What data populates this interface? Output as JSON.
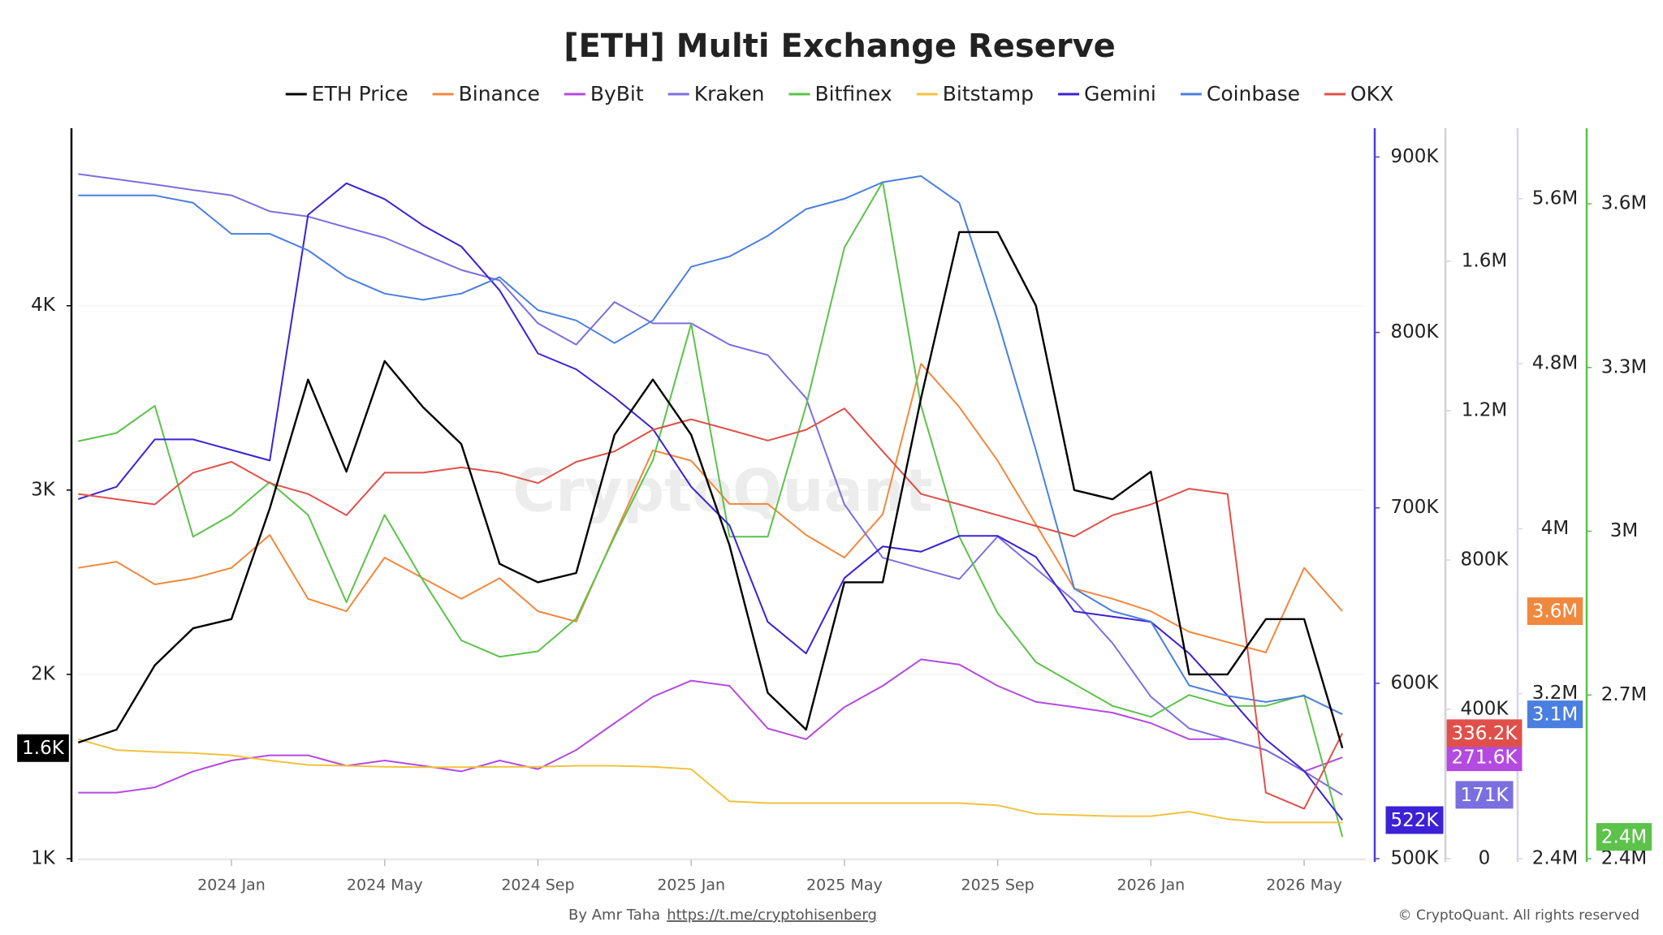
{
  "chart_data": {
    "type": "line",
    "title": "[ETH] Multi Exchange Reserve",
    "watermark": "CryptoQuant",
    "credit": "By Amr Taha",
    "credit_link": "https://t.me/cryptohisenberg",
    "copyright": "© CryptoQuant. All rights reserved",
    "grid": true,
    "legend": "top",
    "x": [
      "2023-09",
      "2023-10",
      "2023-11",
      "2023-12",
      "2024-01",
      "2024-02",
      "2024-03",
      "2024-04",
      "2024-05",
      "2024-06",
      "2024-07",
      "2024-08",
      "2024-09",
      "2024-10",
      "2024-11",
      "2024-12",
      "2025-01",
      "2025-02",
      "2025-03",
      "2025-04",
      "2025-05",
      "2025-06",
      "2025-07",
      "2025-08",
      "2025-09",
      "2025-10",
      "2025-11",
      "2025-12",
      "2026-01",
      "2026-02",
      "2026-03",
      "2026-04",
      "2026-05",
      "2026-06"
    ],
    "xticks": [
      {
        "value": "2024-01",
        "label": "2024 Jan"
      },
      {
        "value": "2024-05",
        "label": "2024 May"
      },
      {
        "value": "2024-09",
        "label": "2024 Sep"
      },
      {
        "value": "2025-01",
        "label": "2025 Jan"
      },
      {
        "value": "2025-05",
        "label": "2025 May"
      },
      {
        "value": "2025-09",
        "label": "2025 Sep"
      },
      {
        "value": "2026-01",
        "label": "2026 Jan"
      },
      {
        "value": "2026-05",
        "label": "2026 May"
      }
    ],
    "ylim": [
      1000,
      4950
    ],
    "yticks": [
      {
        "value": 1000,
        "label": "1K"
      },
      {
        "value": 2000,
        "label": "2K"
      },
      {
        "value": 3000,
        "label": "3K"
      },
      {
        "value": 4000,
        "label": "4K"
      }
    ],
    "y2lim": [
      500000,
      915000
    ],
    "y2ticks": [
      {
        "value": 500000,
        "label": "500K"
      },
      {
        "value": 600000,
        "label": "600K"
      },
      {
        "value": 700000,
        "label": "700K"
      },
      {
        "value": 800000,
        "label": "800K"
      },
      {
        "value": 900000,
        "label": "900K"
      }
    ],
    "y3lim": [
      0,
      1950000
    ],
    "y3ticks": [
      0,
      {
        "value": 400000,
        "label": "400K"
      },
      {
        "value": 800000,
        "label": "800K"
      },
      {
        "value": 1200000,
        "label": "1.2M"
      },
      {
        "value": 1600000,
        "label": "1.6M"
      }
    ],
    "y4lim": [
      2400000,
      5930000
    ],
    "y4ticks": [
      {
        "value": 2400000,
        "label": "2.4M"
      },
      {
        "value": 3200000,
        "label": "3.2M"
      },
      {
        "value": 4000000,
        "label": "4M"
      },
      {
        "value": 4800000,
        "label": "4.8M"
      },
      {
        "value": 5600000,
        "label": "5.6M"
      }
    ],
    "y5lim": [
      2400000,
      3734000
    ],
    "y5ticks": [
      {
        "value": 2400000,
        "label": "2.4M"
      },
      {
        "value": 2700000,
        "label": "2.7M"
      },
      {
        "value": 3000000,
        "label": "3M"
      },
      {
        "value": 3300000,
        "label": "3.3M"
      },
      {
        "value": 3600000,
        "label": "3.6M"
      }
    ],
    "series": [
      {
        "name": "ETH Price",
        "color": "#000000",
        "axis": "y",
        "values": [
          1630,
          1700,
          2050,
          2250,
          2300,
          2900,
          3600,
          3100,
          3700,
          3450,
          3250,
          2600,
          2500,
          2550,
          3300,
          3600,
          3300,
          2700,
          1900,
          1700,
          2500,
          2500,
          3500,
          4400,
          4400,
          4000,
          3000,
          2950,
          3100,
          2000,
          2000,
          2300,
          2300,
          1600
        ],
        "value_labels": [
          null,
          null,
          null,
          null,
          null,
          null,
          null,
          null,
          null,
          null,
          null,
          null,
          null,
          null,
          null,
          null,
          null,
          null,
          null,
          null,
          null,
          null,
          null,
          null,
          null,
          null,
          null,
          null,
          null,
          null,
          null,
          null,
          null,
          "1.6K"
        ]
      },
      {
        "name": "Binance",
        "color": "#f0883e",
        "axis": "y4",
        "values": [
          3810000,
          3840000,
          3730000,
          3760000,
          3810000,
          3970000,
          3660000,
          3600000,
          3860000,
          3760000,
          3660000,
          3760000,
          3600000,
          3550000,
          3970000,
          4380000,
          4330000,
          4120000,
          4120000,
          3970000,
          3860000,
          4070000,
          4800000,
          4590000,
          4330000,
          4020000,
          3710000,
          3660000,
          3600000,
          3500000,
          3450000,
          3400000,
          3810000,
          3600000
        ],
        "value_labels": [
          null,
          null,
          null,
          null,
          null,
          null,
          null,
          null,
          null,
          null,
          null,
          null,
          null,
          null,
          null,
          null,
          null,
          null,
          null,
          null,
          null,
          null,
          null,
          null,
          null,
          null,
          null,
          null,
          null,
          null,
          null,
          null,
          null,
          "3.6M"
        ]
      },
      {
        "name": "ByBit",
        "color": "#b44ae0",
        "axis": "y3",
        "values": [
          177000,
          177000,
          191000,
          234000,
          263000,
          277000,
          277000,
          249000,
          263000,
          249000,
          234000,
          263000,
          240000,
          291000,
          363000,
          434000,
          477000,
          463000,
          349000,
          320000,
          406000,
          463000,
          534000,
          520000,
          463000,
          420000,
          406000,
          391000,
          363000,
          320000,
          320000,
          291000,
          234000,
          271600
        ],
        "value_labels": [
          null,
          null,
          null,
          null,
          null,
          null,
          null,
          null,
          null,
          null,
          null,
          null,
          null,
          null,
          null,
          null,
          null,
          null,
          null,
          null,
          null,
          null,
          null,
          null,
          null,
          null,
          null,
          null,
          null,
          null,
          null,
          null,
          null,
          "271.6K"
        ]
      },
      {
        "name": "Kraken",
        "color": "#7b6fe0",
        "axis": "y3",
        "values": [
          1834000,
          1820000,
          1806000,
          1791000,
          1777000,
          1734000,
          1720000,
          1691000,
          1663000,
          1620000,
          1577000,
          1549000,
          1434000,
          1377000,
          1491000,
          1434000,
          1434000,
          1377000,
          1349000,
          1234000,
          949000,
          806000,
          777000,
          749000,
          863000,
          777000,
          691000,
          577000,
          434000,
          349000,
          320000,
          291000,
          234000,
          171000
        ],
        "value_labels": [
          null,
          null,
          null,
          null,
          null,
          null,
          null,
          null,
          null,
          null,
          null,
          null,
          null,
          null,
          null,
          null,
          null,
          null,
          null,
          null,
          null,
          null,
          null,
          null,
          null,
          null,
          null,
          null,
          null,
          null,
          null,
          null,
          null,
          "171K"
        ]
      },
      {
        "name": "Bitfinex",
        "color": "#5cc24a",
        "axis": "y5",
        "values": [
          3165000,
          3180000,
          3230000,
          2990000,
          3030000,
          3090000,
          3030000,
          2870000,
          3030000,
          2910000,
          2800000,
          2770000,
          2780000,
          2840000,
          2990000,
          3130000,
          3380000,
          2990000,
          2990000,
          3230000,
          3520000,
          3640000,
          3230000,
          2990000,
          2850000,
          2760000,
          2720000,
          2680000,
          2660000,
          2700000,
          2680000,
          2680000,
          2700000,
          2440000
        ],
        "value_labels": [
          null,
          null,
          null,
          null,
          null,
          null,
          null,
          null,
          null,
          null,
          null,
          null,
          null,
          null,
          null,
          null,
          null,
          null,
          null,
          null,
          null,
          null,
          null,
          null,
          null,
          null,
          null,
          null,
          null,
          null,
          null,
          null,
          null,
          "2.4M"
        ]
      },
      {
        "name": "Bitstamp",
        "color": "#f0c23e",
        "axis": "y3",
        "values": [
          320000,
          291000,
          286000,
          283000,
          277000,
          263000,
          251000,
          249000,
          246000,
          245000,
          245000,
          246000,
          246000,
          249000,
          249000,
          246000,
          240000,
          154000,
          149000,
          149000,
          149000,
          149000,
          149000,
          149000,
          143000,
          120000,
          117000,
          114000,
          114000,
          126000,
          106000,
          97000,
          97000,
          97000
        ]
      },
      {
        "name": "Gemini",
        "color": "#3b22d6",
        "axis": "y2",
        "values": [
          705000,
          712000,
          739000,
          739000,
          733000,
          727000,
          867000,
          885000,
          876000,
          861000,
          849000,
          824000,
          788000,
          779000,
          763000,
          745000,
          712000,
          690000,
          635000,
          617000,
          660000,
          678000,
          675000,
          684000,
          684000,
          672000,
          641000,
          638000,
          635000,
          617000,
          593000,
          568000,
          550000,
          522000
        ],
        "value_labels": [
          null,
          null,
          null,
          null,
          null,
          null,
          null,
          null,
          null,
          null,
          null,
          null,
          null,
          null,
          null,
          null,
          null,
          null,
          null,
          null,
          null,
          null,
          null,
          null,
          null,
          null,
          null,
          null,
          null,
          null,
          null,
          null,
          null,
          "522K"
        ]
      },
      {
        "name": "Coinbase",
        "color": "#4a7fe0",
        "axis": "y4",
        "values": [
          5616000,
          5616000,
          5616000,
          5580000,
          5430000,
          5430000,
          5350000,
          5220000,
          5140000,
          5110000,
          5140000,
          5220000,
          5060000,
          5010000,
          4900000,
          5010000,
          5270000,
          5320000,
          5420000,
          5550000,
          5600000,
          5680000,
          5710000,
          5580000,
          5010000,
          4380000,
          3710000,
          3600000,
          3550000,
          3240000,
          3190000,
          3160000,
          3190000,
          3100000
        ],
        "value_labels": [
          null,
          null,
          null,
          null,
          null,
          null,
          null,
          null,
          null,
          null,
          null,
          null,
          null,
          null,
          null,
          null,
          null,
          null,
          null,
          null,
          null,
          null,
          null,
          null,
          null,
          null,
          null,
          null,
          null,
          null,
          null,
          null,
          null,
          "3.1M"
        ]
      },
      {
        "name": "OKX",
        "color": "#e0504a",
        "axis": "y3",
        "values": [
          977000,
          963000,
          949000,
          1034000,
          1063000,
          1006000,
          977000,
          920000,
          1034000,
          1034000,
          1048000,
          1034000,
          1006000,
          1063000,
          1091000,
          1149000,
          1177000,
          1149000,
          1120000,
          1149000,
          1206000,
          1091000,
          977000,
          949000,
          920000,
          891000,
          863000,
          920000,
          949000,
          991000,
          977000,
          177000,
          134000,
          336200
        ],
        "value_labels": [
          null,
          null,
          null,
          null,
          null,
          null,
          null,
          null,
          null,
          null,
          null,
          null,
          null,
          null,
          null,
          null,
          null,
          null,
          null,
          null,
          null,
          null,
          null,
          null,
          null,
          null,
          null,
          null,
          null,
          null,
          null,
          null,
          null,
          "336.2K"
        ]
      }
    ]
  }
}
